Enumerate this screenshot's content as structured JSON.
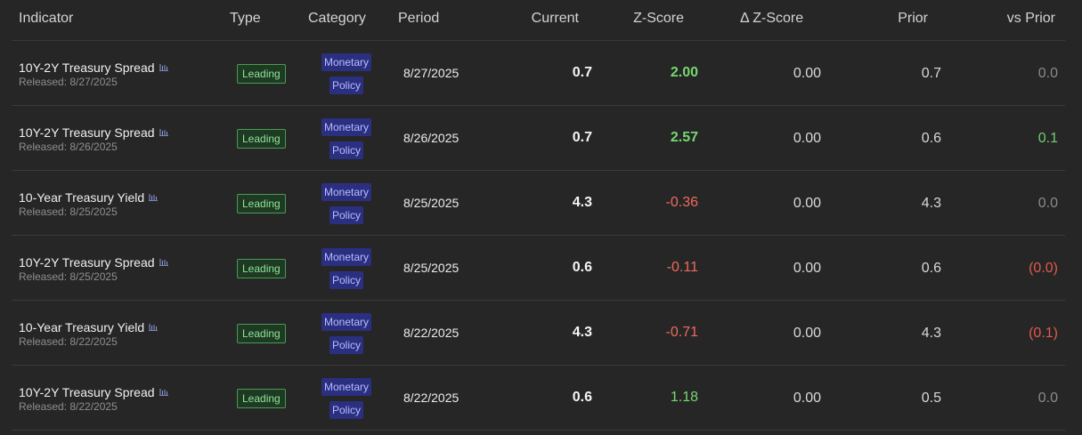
{
  "columns": {
    "indicator": "Indicator",
    "type": "Type",
    "category": "Category",
    "period": "Period",
    "current": "Current",
    "zscore": "Z-Score",
    "delta_zscore": "Δ Z-Score",
    "prior": "Prior",
    "vs_prior": "vs Prior"
  },
  "rows": [
    {
      "name": "10Y-2Y Treasury Spread",
      "released": "Released: 8/27/2025",
      "type": "Leading",
      "category_line1": "Monetary",
      "category_line2": "Policy",
      "period": "8/27/2025",
      "current": "0.7",
      "zscore": "2.00",
      "zscore_tone": "positive-strong",
      "delta_zscore": "0.00",
      "prior": "0.7",
      "vs_prior": "0.0",
      "vs_prior_tone": "neutral"
    },
    {
      "name": "10Y-2Y Treasury Spread",
      "released": "Released: 8/26/2025",
      "type": "Leading",
      "category_line1": "Monetary",
      "category_line2": "Policy",
      "period": "8/26/2025",
      "current": "0.7",
      "zscore": "2.57",
      "zscore_tone": "positive-strong",
      "delta_zscore": "0.00",
      "prior": "0.6",
      "vs_prior": "0.1",
      "vs_prior_tone": "positive"
    },
    {
      "name": "10-Year Treasury Yield",
      "released": "Released: 8/25/2025",
      "type": "Leading",
      "category_line1": "Monetary",
      "category_line2": "Policy",
      "period": "8/25/2025",
      "current": "4.3",
      "zscore": "-0.36",
      "zscore_tone": "negative",
      "delta_zscore": "0.00",
      "prior": "4.3",
      "vs_prior": "0.0",
      "vs_prior_tone": "neutral"
    },
    {
      "name": "10Y-2Y Treasury Spread",
      "released": "Released: 8/25/2025",
      "type": "Leading",
      "category_line1": "Monetary",
      "category_line2": "Policy",
      "period": "8/25/2025",
      "current": "0.6",
      "zscore": "-0.11",
      "zscore_tone": "negative",
      "delta_zscore": "0.00",
      "prior": "0.6",
      "vs_prior": "(0.0)",
      "vs_prior_tone": "negative"
    },
    {
      "name": "10-Year Treasury Yield",
      "released": "Released: 8/22/2025",
      "type": "Leading",
      "category_line1": "Monetary",
      "category_line2": "Policy",
      "period": "8/22/2025",
      "current": "4.3",
      "zscore": "-0.71",
      "zscore_tone": "negative",
      "delta_zscore": "0.00",
      "prior": "4.3",
      "vs_prior": "(0.1)",
      "vs_prior_tone": "negative"
    },
    {
      "name": "10Y-2Y Treasury Spread",
      "released": "Released: 8/22/2025",
      "type": "Leading",
      "category_line1": "Monetary",
      "category_line2": "Policy",
      "period": "8/22/2025",
      "current": "0.6",
      "zscore": "1.18",
      "zscore_tone": "positive",
      "delta_zscore": "0.00",
      "prior": "0.5",
      "vs_prior": "0.0",
      "vs_prior_tone": "neutral"
    }
  ],
  "icons": {
    "chart": "bar-chart-icon"
  },
  "colors": {
    "background": "#262626",
    "positive": "#77d86f",
    "negative": "#ee6a5f",
    "category_bg": "#2b2f80",
    "leading_border": "#4a9a55"
  }
}
